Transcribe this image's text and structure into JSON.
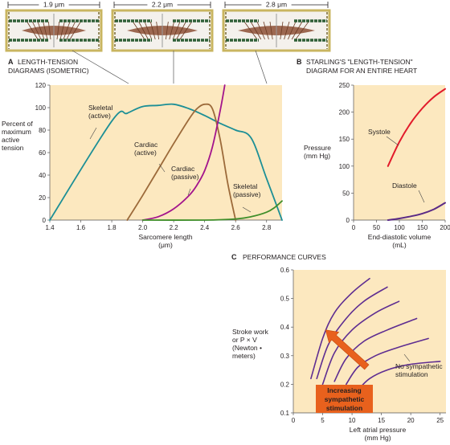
{
  "colors": {
    "plot_bg": "#fce8bf",
    "skeletal": "#1c8f96",
    "cardiac_active": "#9c6a3a",
    "cardiac_passive": "#a3148c",
    "skeletal_passive": "#3f8e2a",
    "systole": "#e21b2b",
    "diastole": "#5a2a86",
    "performance": "#5e2d91",
    "arrow": "#e8611d",
    "sarcomere_frame": "#c9b560",
    "thin_filament": "#2f5f37",
    "thick_filament": "#8d5036"
  },
  "sarcomeres": [
    {
      "label": "1.9 μm"
    },
    {
      "label": "2.2 μm"
    },
    {
      "label": "2.8 μm"
    }
  ],
  "chart_data": [
    {
      "id": "A",
      "type": "line",
      "panel_letter": "A",
      "title": "LENGTH-TENSION\nDIAGRAMS (ISOMETRIC)",
      "xlabel": "Sarcomere length\n(μm)",
      "ylabel": "Percent of\nmaximum\nactive\ntension",
      "xlim": [
        1.4,
        2.9
      ],
      "ylim": [
        0,
        120
      ],
      "xticks": [
        1.4,
        1.6,
        1.8,
        2.0,
        2.2,
        2.4,
        2.6,
        2.8
      ],
      "yticks": [
        0,
        20,
        40,
        60,
        80,
        100,
        120
      ],
      "grid": false,
      "series": [
        {
          "name": "Skeletal\n(active)",
          "color_key": "skeletal",
          "x": [
            1.4,
            1.8,
            1.9,
            2.0,
            2.1,
            2.2,
            2.3,
            2.4,
            2.5,
            2.6,
            2.7,
            2.8,
            2.9
          ],
          "y": [
            0,
            88,
            95,
            101,
            102,
            103,
            99,
            93,
            86,
            80,
            73,
            37,
            0
          ]
        },
        {
          "name": "Cardiac\n(active)",
          "color_key": "cardiac_active",
          "x": [
            1.9,
            2.0,
            2.1,
            2.2,
            2.3,
            2.35,
            2.4,
            2.45,
            2.5,
            2.55,
            2.6
          ],
          "y": [
            0,
            22,
            45,
            68,
            90,
            99,
            103,
            99,
            72,
            32,
            0
          ]
        },
        {
          "name": "Cardiac\n(passive)",
          "color_key": "cardiac_passive",
          "x": [
            2.0,
            2.1,
            2.2,
            2.3,
            2.35,
            2.4,
            2.45,
            2.5,
            2.53
          ],
          "y": [
            0,
            3,
            10,
            22,
            31,
            44,
            65,
            97,
            120
          ]
        },
        {
          "name": "Skeletal\n(passive)",
          "color_key": "skeletal_passive",
          "x": [
            2.0,
            2.4,
            2.6,
            2.7,
            2.8,
            2.85,
            2.9
          ],
          "y": [
            0,
            0,
            1,
            3,
            7,
            11,
            17
          ]
        }
      ]
    },
    {
      "id": "B",
      "type": "line",
      "panel_letter": "B",
      "title": "STARLING'S \"LENGTH-TENSION\"\nDIAGRAM FOR AN ENTIRE HEART",
      "xlabel": "End-diastolic volume\n(mL)",
      "ylabel": "Pressure\n(mm Hg)",
      "xlim": [
        0,
        200
      ],
      "ylim": [
        0,
        250
      ],
      "xticks": [
        0,
        50,
        100,
        150,
        200
      ],
      "yticks": [
        0,
        50,
        100,
        150,
        200,
        250
      ],
      "grid": false,
      "series": [
        {
          "name": "Systole",
          "color_key": "systole",
          "x": [
            75,
            100,
            125,
            150,
            175,
            200
          ],
          "y": [
            100,
            145,
            180,
            207,
            228,
            243
          ]
        },
        {
          "name": "Diastole",
          "color_key": "diastole",
          "x": [
            75,
            100,
            125,
            150,
            175,
            200
          ],
          "y": [
            0,
            3,
            7,
            12,
            20,
            32
          ]
        }
      ]
    },
    {
      "id": "C",
      "type": "line",
      "panel_letter": "C",
      "title": "PERFORMANCE CURVES",
      "xlabel": "Left atrial pressure\n(mm Hg)",
      "ylabel": "Stroke work\nor P × V\n(Newton •\nmeters)",
      "xlim": [
        0,
        26
      ],
      "ylim": [
        0.1,
        0.6
      ],
      "xticks": [
        0,
        5,
        10,
        15,
        20,
        25
      ],
      "yticks": [
        0.1,
        0.2,
        0.3,
        0.4,
        0.5,
        0.6
      ],
      "grid": false,
      "series": [
        {
          "color_key": "performance",
          "x": [
            3,
            5,
            7,
            10,
            13
          ],
          "y": [
            0.22,
            0.36,
            0.45,
            0.52,
            0.57
          ]
        },
        {
          "color_key": "performance",
          "x": [
            4,
            6,
            9,
            12,
            16
          ],
          "y": [
            0.22,
            0.34,
            0.43,
            0.49,
            0.54
          ]
        },
        {
          "color_key": "performance",
          "x": [
            5,
            7,
            10,
            14,
            18
          ],
          "y": [
            0.2,
            0.31,
            0.39,
            0.45,
            0.49
          ]
        },
        {
          "color_key": "performance",
          "x": [
            7,
            9,
            12,
            16,
            21
          ],
          "y": [
            0.21,
            0.29,
            0.35,
            0.39,
            0.43
          ]
        },
        {
          "color_key": "performance",
          "x": [
            9,
            11,
            14,
            18,
            23
          ],
          "y": [
            0.2,
            0.26,
            0.3,
            0.33,
            0.36
          ]
        },
        {
          "color_key": "performance",
          "x": [
            11,
            13,
            16,
            20,
            25
          ],
          "y": [
            0.18,
            0.22,
            0.25,
            0.27,
            0.28
          ]
        }
      ],
      "annotations": {
        "no_stim": "No sympathetic\nstimulation",
        "increasing": "Increasing\nsympathetic\nstimulation"
      }
    }
  ]
}
